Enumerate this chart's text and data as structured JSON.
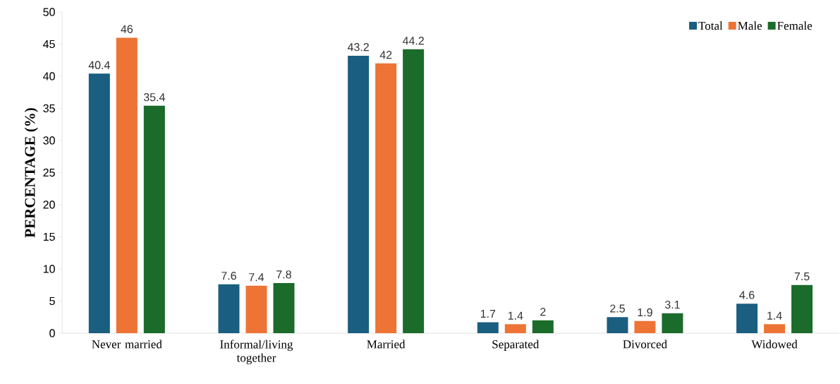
{
  "chart_data": {
    "type": "bar",
    "ylabel": "PERCENTAGE (%)",
    "categories": [
      "Never married",
      "Informal/living together",
      "Married",
      "Separated",
      "Divorced",
      "Widowed"
    ],
    "series": [
      {
        "name": "Total",
        "color": "#1a5e80",
        "values": [
          40.4,
          7.6,
          43.2,
          1.7,
          2.5,
          4.6
        ]
      },
      {
        "name": "Male",
        "color": "#ed7435",
        "values": [
          46,
          7.4,
          42,
          1.4,
          1.9,
          1.4
        ]
      },
      {
        "name": "Female",
        "color": "#1b6b2a",
        "values": [
          35.4,
          7.8,
          44.2,
          2,
          3.1,
          7.5
        ]
      }
    ],
    "ylim": [
      0,
      50
    ],
    "yticks": [
      0,
      5,
      10,
      15,
      20,
      25,
      30,
      35,
      40,
      45,
      50
    ],
    "data_labels": true,
    "grid": false,
    "legend": "top right"
  }
}
